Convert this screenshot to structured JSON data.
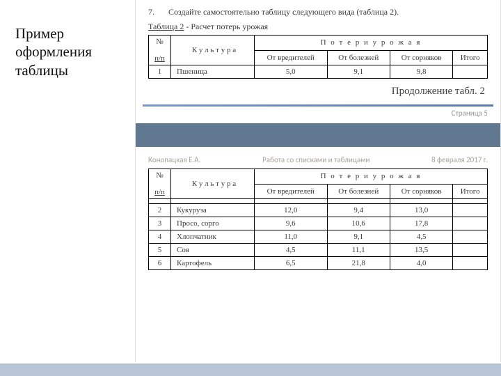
{
  "side_title": "Пример оформления таблицы",
  "task": {
    "num": "7.",
    "text": "Создайте самостоятельно таблицу следующего вида (таблица 2)."
  },
  "caption": {
    "label": "Таблица  2",
    "dash": " - ",
    "title": "Расчет потерь урожая"
  },
  "headers": {
    "num": "№ п/п",
    "culture": "К у л ь т у р а",
    "losses": "П о т е р и   у р о ж а я",
    "pest": "От вредителей",
    "disease": "От болезней",
    "weed": "От сорняков",
    "total": "Итого"
  },
  "rows_top": [
    {
      "n": "1",
      "name": "Пшеница",
      "pest": "5,0",
      "disease": "9,1",
      "weed": "9,8",
      "total": ""
    }
  ],
  "continuation": "Продолжение табл. 2",
  "page_num": "Страница 5",
  "header2": {
    "author": "Конопацкая Е.А.",
    "work": "Работа со списками и таблицами",
    "date": "8 февраля 2017 г."
  },
  "rows_bottom": [
    {
      "n": "",
      "name": "",
      "pest": "",
      "disease": "",
      "weed": "",
      "total": ""
    },
    {
      "n": "2",
      "name": "Кукуруза",
      "pest": "12,0",
      "disease": "9,4",
      "weed": "13,0",
      "total": ""
    },
    {
      "n": "3",
      "name": "Просо, сорго",
      "pest": "9,6",
      "disease": "10,6",
      "weed": "17,8",
      "total": ""
    },
    {
      "n": "4",
      "name": "Хлопчатник",
      "pest": "11,0",
      "disease": "9,1",
      "weed": "4,5",
      "total": ""
    },
    {
      "n": "5",
      "name": "Соя",
      "pest": "4,5",
      "disease": "11,1",
      "weed": "13,5",
      "total": ""
    },
    {
      "n": "6",
      "name": "Картофель",
      "pest": "6,5",
      "disease": "21,8",
      "weed": "4,0",
      "total": ""
    }
  ],
  "colors": {
    "gap": "#617891",
    "bottom_bar": "#b8c5d6"
  }
}
